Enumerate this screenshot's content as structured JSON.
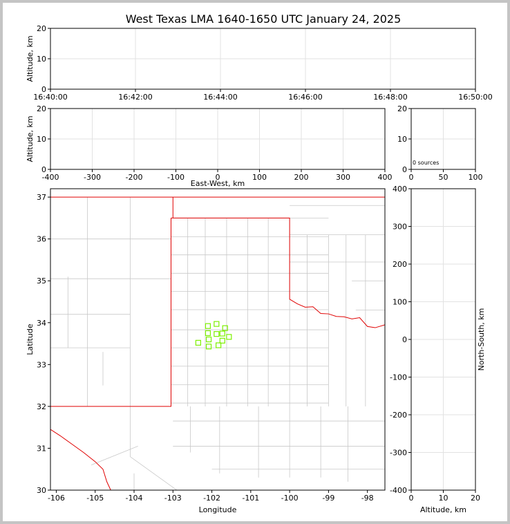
{
  "title": "West Texas LMA 1640-1650 UTC January 24, 2025",
  "colors": {
    "state_border": "#e00000",
    "county_border": "#c8c8c8",
    "source_marker": "#7cf000",
    "grid": "#e2e2e2"
  },
  "chart_data": [
    {
      "id": "time_height",
      "type": "scatter",
      "ylabel": "Altitude, km",
      "ylim": [
        0,
        20
      ],
      "yticks": [
        0,
        10,
        20
      ],
      "xticks": [
        "16:40:00",
        "16:42:00",
        "16:44:00",
        "16:46:00",
        "16:48:00",
        "16:50:00"
      ],
      "points": []
    },
    {
      "id": "ew_height",
      "type": "scatter",
      "xlabel": "East-West, km",
      "ylabel": "Altitude, km",
      "xlim": [
        -400,
        400
      ],
      "ylim": [
        0,
        20
      ],
      "xticks": [
        -400,
        -300,
        -200,
        -100,
        0,
        100,
        200,
        300,
        400
      ],
      "yticks": [
        0,
        10,
        20
      ],
      "points": []
    },
    {
      "id": "histogram",
      "type": "bar",
      "annotation": "0 sources",
      "xlim": [
        0,
        100
      ],
      "ylim": [
        0,
        20
      ],
      "xticks": [
        0,
        50,
        100
      ],
      "yticks": [
        0,
        10,
        20
      ],
      "values": []
    },
    {
      "id": "plan_view",
      "type": "scatter",
      "xlabel": "Longitude",
      "ylabel": "Latitude",
      "xlim": [
        -106.15,
        -97.55
      ],
      "ylim": [
        30,
        37.2
      ],
      "xticks": [
        -106,
        -105,
        -104,
        -103,
        -102,
        -101,
        -100,
        -99,
        -98
      ],
      "yticks": [
        30,
        31,
        32,
        33,
        34,
        35,
        36,
        37
      ],
      "points": [
        {
          "lon": -102.35,
          "lat": 33.52
        },
        {
          "lon": -102.1,
          "lat": 33.92
        },
        {
          "lon": -102.1,
          "lat": 33.75
        },
        {
          "lon": -102.08,
          "lat": 33.6
        },
        {
          "lon": -102.08,
          "lat": 33.43
        },
        {
          "lon": -101.88,
          "lat": 33.97
        },
        {
          "lon": -101.88,
          "lat": 33.73
        },
        {
          "lon": -101.83,
          "lat": 33.46
        },
        {
          "lon": -101.73,
          "lat": 33.74
        },
        {
          "lon": -101.73,
          "lat": 33.57
        },
        {
          "lon": -101.66,
          "lat": 33.87
        },
        {
          "lon": -101.56,
          "lat": 33.66
        }
      ]
    },
    {
      "id": "ns_height",
      "type": "scatter",
      "xlabel": "Altitude, km",
      "ylabel": "North-South, km",
      "xlim": [
        0,
        20
      ],
      "ylim": [
        -400,
        400
      ],
      "xticks": [
        0,
        10,
        20
      ],
      "yticks": [
        -400,
        -300,
        -200,
        -100,
        0,
        100,
        200,
        300,
        400
      ],
      "points": []
    }
  ]
}
